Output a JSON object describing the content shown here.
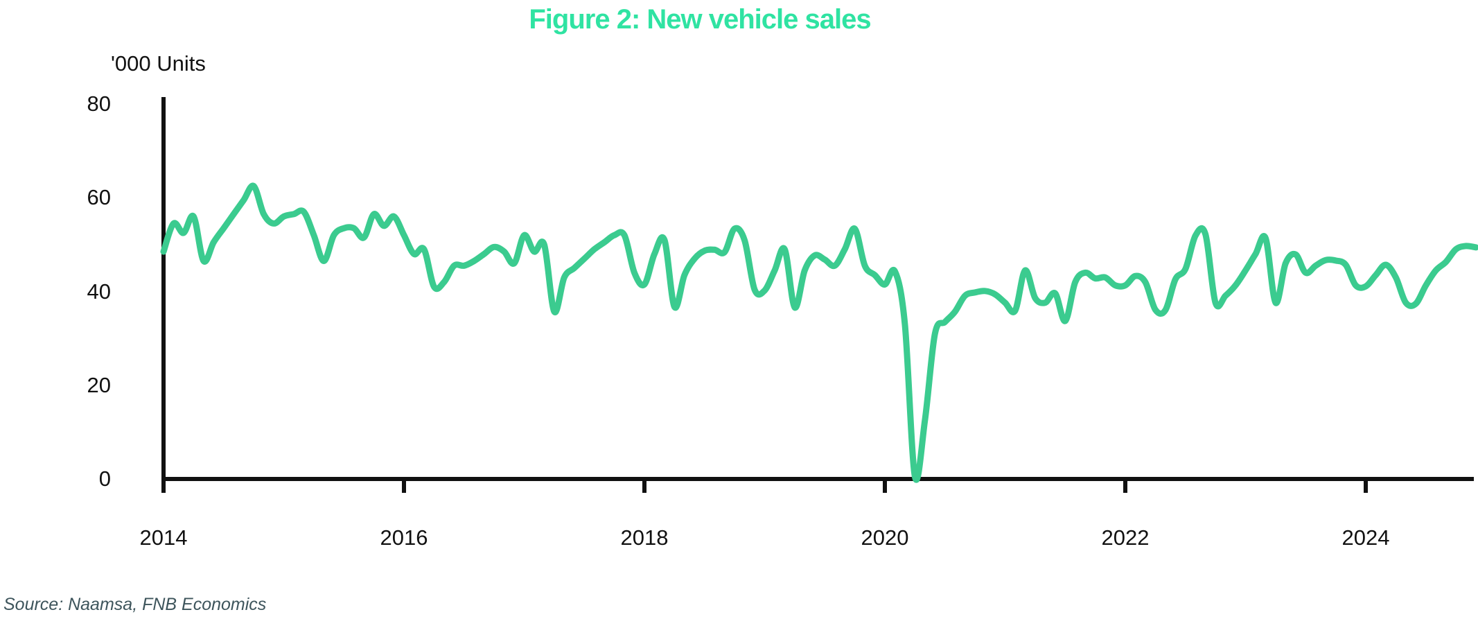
{
  "title": "Figure 2: New vehicle sales",
  "y_axis_unit_label": "'000 Units",
  "source": "Source: Naamsa, FNB Economics",
  "colors": {
    "title": "#2FE3A2",
    "line": "#3BCB8F",
    "axis": "#111111",
    "tick_text": "#111111",
    "source_text": "#3D545B",
    "background": "#FFFFFF"
  },
  "chart_data": {
    "type": "line",
    "title": "Figure 2: New vehicle sales",
    "ylabel": "'000 Units",
    "xlabel": "",
    "grid": false,
    "legend_position": "none",
    "ylim": [
      0,
      80
    ],
    "y_ticks": [
      0,
      20,
      40,
      60,
      80
    ],
    "x_tick_years": [
      2014,
      2016,
      2018,
      2020,
      2022,
      2024
    ],
    "frequency": "monthly",
    "series": [
      {
        "name": "New vehicle sales ('000 units)",
        "start": "2014-01",
        "end": "2024-12",
        "values": [
          48.5,
          54.5,
          52.5,
          56.0,
          46.5,
          50.5,
          53.5,
          56.5,
          59.5,
          62.5,
          56.5,
          54.5,
          56.0,
          56.5,
          57.0,
          52.0,
          46.5,
          52.0,
          53.5,
          53.5,
          51.5,
          56.5,
          54.0,
          56.0,
          52.0,
          48.0,
          49.0,
          41.0,
          42.0,
          45.5,
          45.5,
          46.5,
          48.0,
          49.5,
          48.5,
          46.0,
          52.0,
          48.5,
          50.0,
          35.7,
          43.0,
          45.0,
          47.0,
          49.0,
          50.5,
          52.0,
          52.0,
          44.0,
          41.5,
          48.0,
          51.0,
          36.7,
          43.5,
          47.0,
          48.7,
          48.9,
          48.4,
          53.4,
          50.9,
          40.4,
          40.2,
          44.5,
          49.0,
          36.6,
          44.5,
          47.7,
          46.8,
          45.5,
          49.0,
          53.4,
          45.5,
          43.5,
          41.5,
          44.3,
          33.0,
          0.5,
          12.5,
          31.0,
          33.5,
          35.7,
          39.1,
          39.8,
          40.1,
          39.4,
          37.6,
          35.9,
          44.5,
          38.6,
          37.6,
          39.6,
          33.7,
          42.0,
          44.0,
          42.8,
          43.0,
          41.3,
          41.3,
          43.3,
          42.0,
          36.1,
          36.0,
          42.6,
          44.8,
          51.9,
          52.2,
          37.6,
          39.1,
          41.3,
          44.5,
          48.0,
          51.4,
          37.6,
          46.0,
          47.9,
          44.0,
          45.5,
          46.7,
          46.6,
          45.7,
          41.3,
          41.1,
          43.5,
          45.7,
          43.0,
          37.6,
          37.4,
          41.3,
          44.5,
          46.3,
          49.0,
          49.7,
          49.4
        ]
      }
    ]
  }
}
